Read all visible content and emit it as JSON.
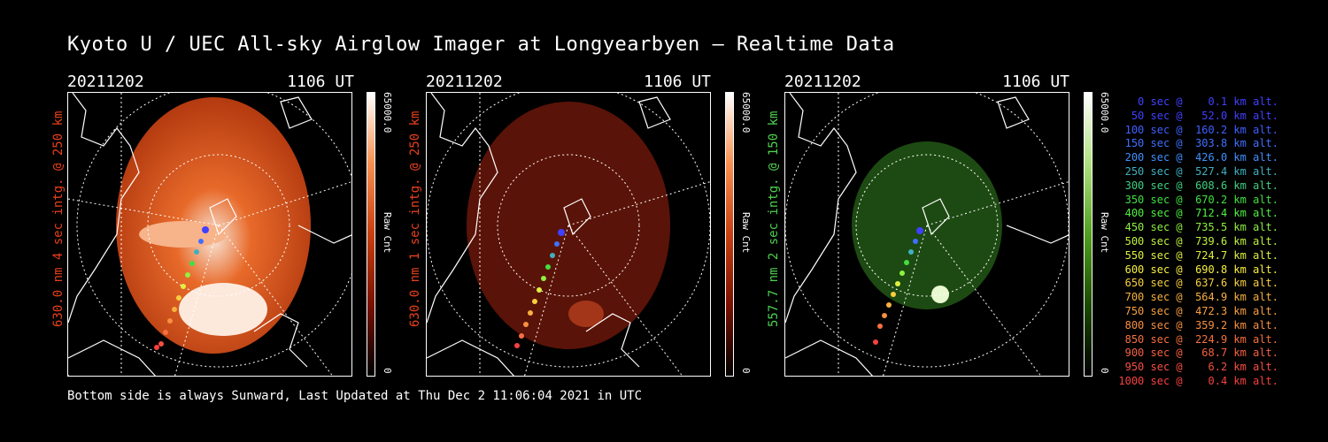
{
  "title": "Kyoto U / UEC All-sky Airglow Imager at Longyearbyen — Realtime Data",
  "footer": "Bottom side is always Sunward, Last Updated at Thu Dec  2 11:06:04 2021 in UTC",
  "panels": [
    {
      "date": "20211202",
      "time": "1106 UT",
      "side_label": "630.0 nm 4 sec intg. @ 250 km",
      "color": "#e8401c",
      "cbar_max": "65000.0",
      "cbar_unit": "Raw Cnt",
      "cbar_min": "0"
    },
    {
      "date": "20211202",
      "time": "1106 UT",
      "side_label": "630.0 nm 1 sec intg. @ 250 km",
      "color": "#e8401c",
      "cbar_max": "65000.0",
      "cbar_unit": "Raw Cnt",
      "cbar_min": "0"
    },
    {
      "date": "20211202",
      "time": "1106 UT",
      "side_label": "557.7 nm 2 sec intg. @ 150 km",
      "color": "#4fd14f",
      "cbar_max": "65000.0",
      "cbar_unit": "Raw Cnt",
      "cbar_min": "0"
    }
  ],
  "legend": [
    {
      "text": "   0 sec @    0.1 km alt.",
      "color": "#4040ff"
    },
    {
      "text": "  50 sec @   52.0 km alt.",
      "color": "#4040ff"
    },
    {
      "text": " 100 sec @  160.2 km alt.",
      "color": "#4060ff"
    },
    {
      "text": " 150 sec @  303.8 km alt.",
      "color": "#4070ff"
    },
    {
      "text": " 200 sec @  426.0 km alt.",
      "color": "#4090ff"
    },
    {
      "text": " 250 sec @  527.4 km alt.",
      "color": "#40b0c0"
    },
    {
      "text": " 300 sec @  608.6 km alt.",
      "color": "#40d080"
    },
    {
      "text": " 350 sec @  670.2 km alt.",
      "color": "#40e040"
    },
    {
      "text": " 400 sec @  712.4 km alt.",
      "color": "#50f040"
    },
    {
      "text": " 450 sec @  735.5 km alt.",
      "color": "#90f040"
    },
    {
      "text": " 500 sec @  739.6 km alt.",
      "color": "#c0f040"
    },
    {
      "text": " 550 sec @  724.7 km alt.",
      "color": "#e0f040"
    },
    {
      "text": " 600 sec @  690.8 km alt.",
      "color": "#f8f040"
    },
    {
      "text": " 650 sec @  637.6 km alt.",
      "color": "#f8d040"
    },
    {
      "text": " 700 sec @  564.9 km alt.",
      "color": "#f8b040"
    },
    {
      "text": " 750 sec @  472.3 km alt.",
      "color": "#f8a040"
    },
    {
      "text": " 800 sec @  359.2 km alt.",
      "color": "#f89040"
    },
    {
      "text": " 850 sec @  224.9 km alt.",
      "color": "#f87040"
    },
    {
      "text": " 900 sec @   68.7 km alt.",
      "color": "#f86040"
    },
    {
      "text": " 950 sec @    6.2 km alt.",
      "color": "#f85040"
    },
    {
      "text": "1000 sec @    0.4 km alt.",
      "color": "#f84040"
    }
  ]
}
